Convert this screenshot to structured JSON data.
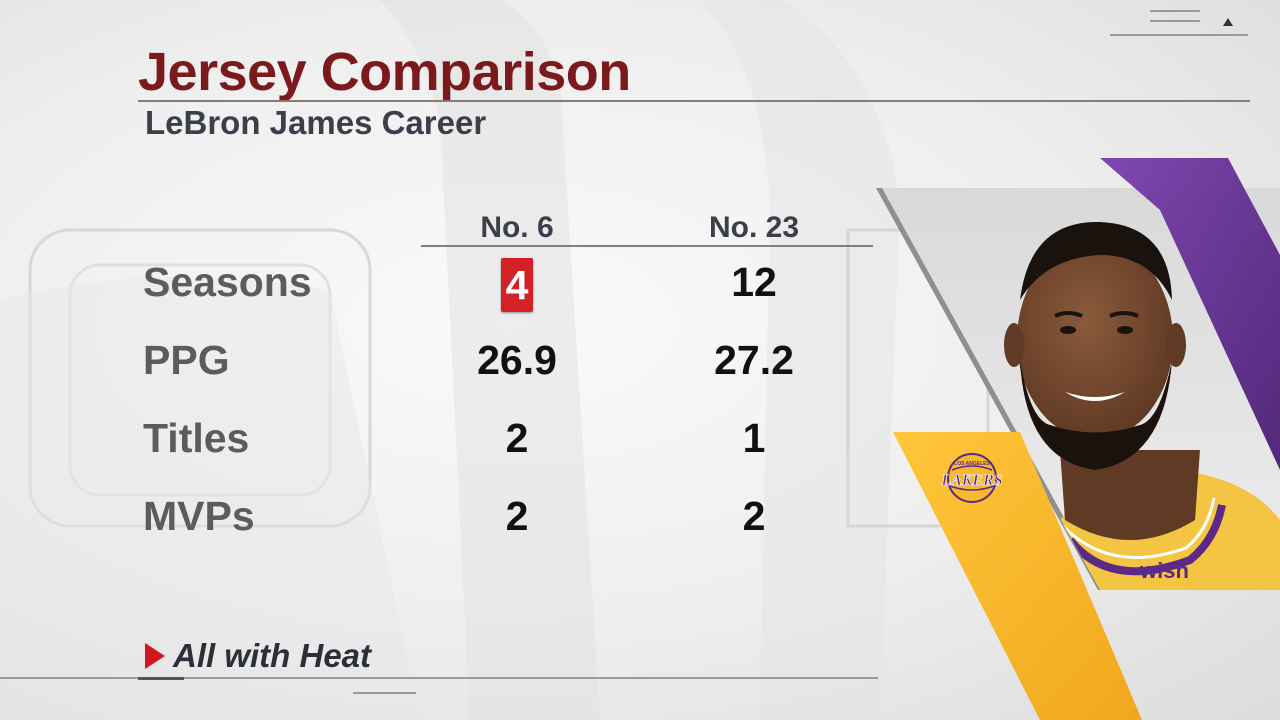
{
  "graphic": {
    "title": "Jersey Comparison",
    "subtitle": "LeBron James Career",
    "columns": [
      "No. 6",
      "No. 23"
    ],
    "rows": [
      {
        "label": "Seasons",
        "values": [
          "4",
          "12"
        ],
        "highlight": [
          true,
          false
        ]
      },
      {
        "label": "PPG",
        "values": [
          "26.9",
          "27.2"
        ],
        "highlight": [
          false,
          false
        ]
      },
      {
        "label": "Titles",
        "values": [
          "2",
          "1"
        ],
        "highlight": [
          false,
          false
        ]
      },
      {
        "label": "MVPs",
        "values": [
          "2",
          "2"
        ],
        "highlight": [
          false,
          false
        ]
      }
    ],
    "footnote": "All with Heat",
    "logo": {
      "name": "lakers-logo",
      "text_top": "LOS ANGELES",
      "text_main": "LAKERS"
    },
    "jersey_text": "wish"
  },
  "colors": {
    "title": "#7a1a1c",
    "highlight": "#d42126",
    "lakers_purple": "#5b2a86",
    "lakers_gold": "#f7b92b"
  },
  "icons": [
    "menu-icon",
    "caret-up-icon",
    "red-triangle-icon"
  ]
}
